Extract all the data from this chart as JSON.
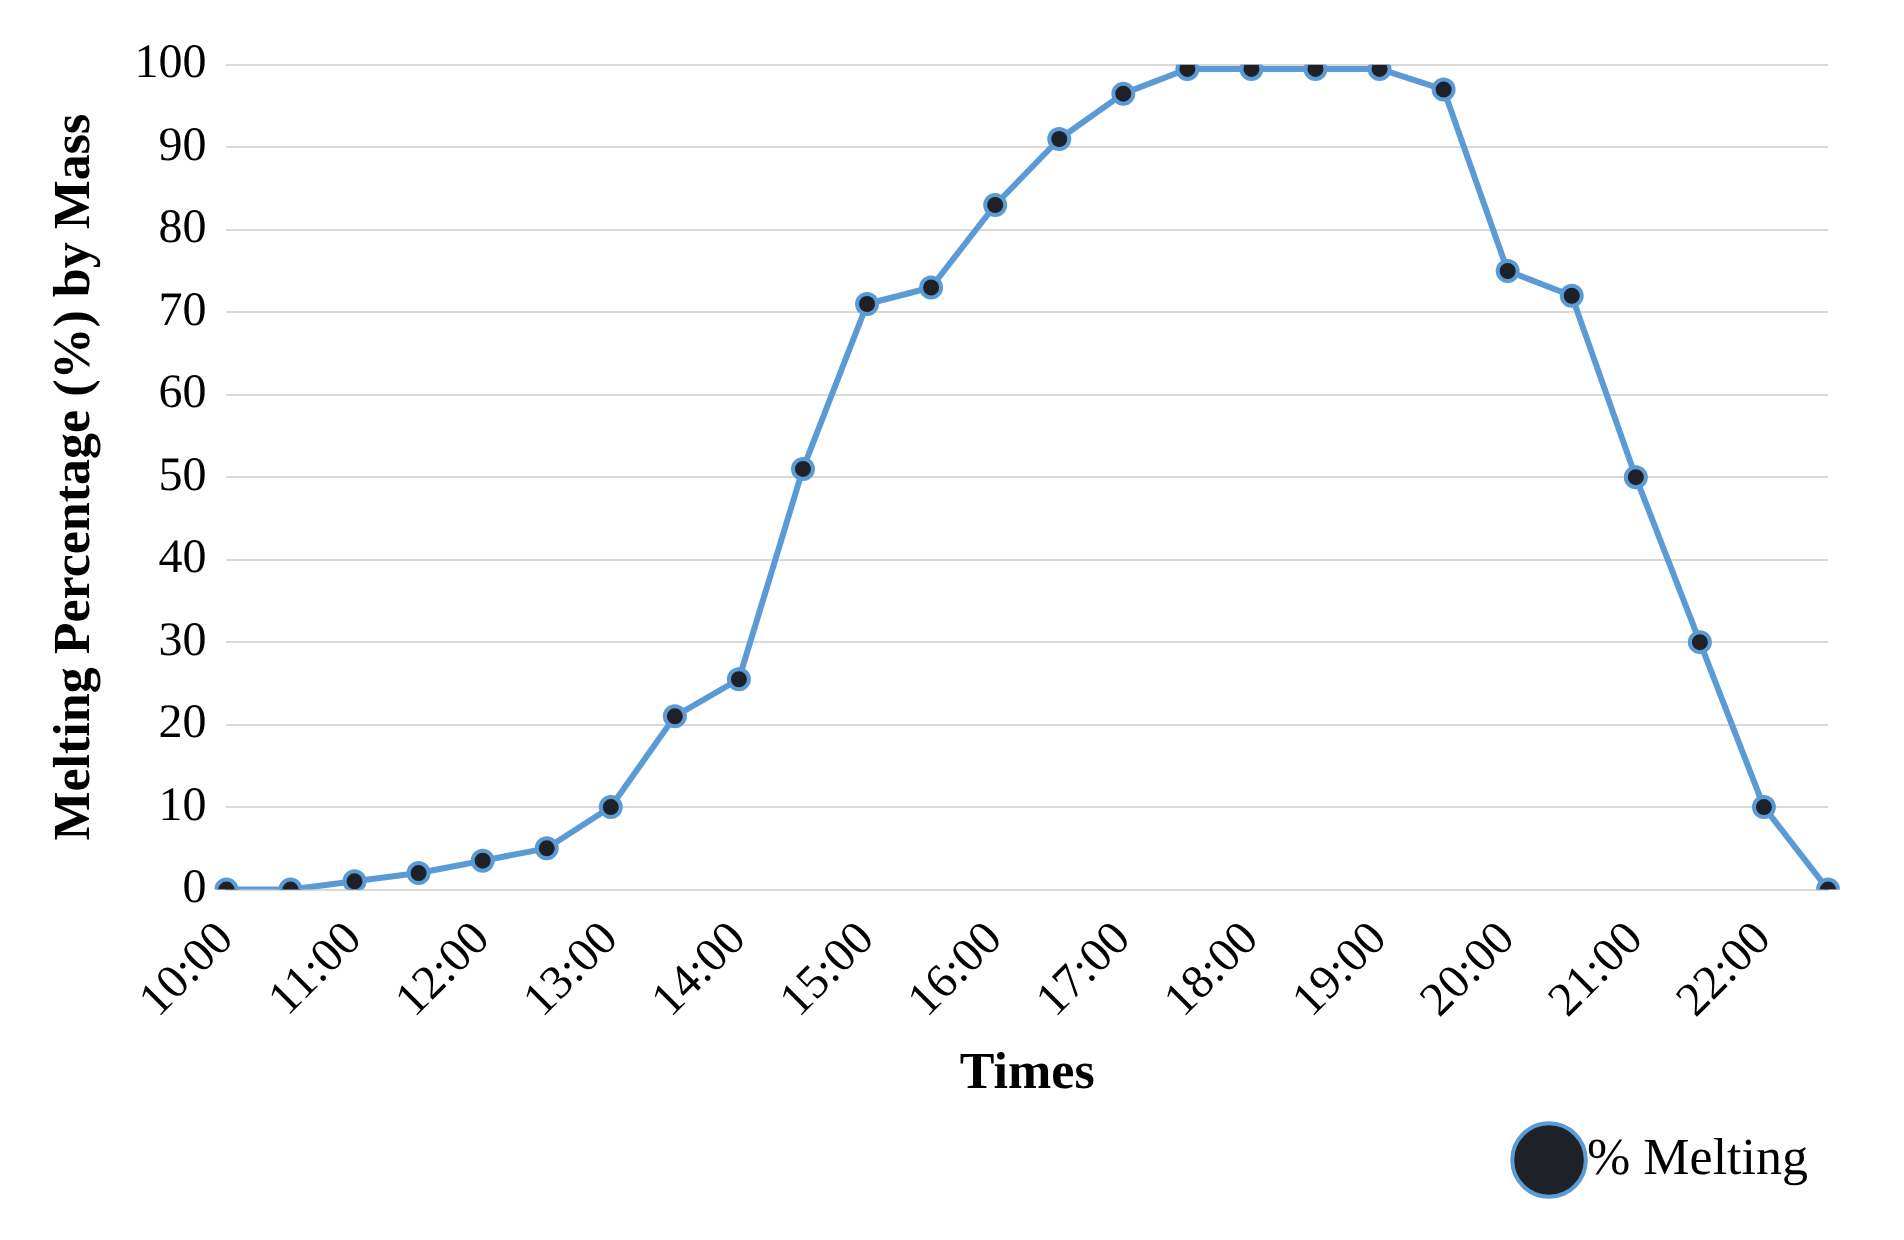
{
  "chart_data": {
    "type": "line",
    "xlabel": "Times",
    "ylabel": "Melting Percentage (%) by Mass",
    "categories": [
      "10:00",
      null,
      "11:00",
      null,
      "12:00",
      null,
      "13:00",
      null,
      "14:00",
      null,
      "15:00",
      null,
      "16:00",
      null,
      "17:00",
      null,
      "18:00",
      null,
      "19:00",
      null,
      "20:00",
      null,
      "21:00",
      null,
      "22:00",
      null
    ],
    "series": [
      {
        "name": "% Melting",
        "color": "#5b9bd5",
        "values": [
          0,
          0,
          1,
          2,
          3.5,
          5,
          10,
          21,
          25.5,
          51,
          71,
          73,
          83,
          91,
          96.5,
          99.5,
          99.5,
          99.5,
          99.5,
          97,
          75,
          72,
          50,
          30,
          10,
          0
        ]
      }
    ],
    "ylim": [
      0,
      100
    ],
    "yticks": [
      0,
      10,
      20,
      30,
      40,
      50,
      60,
      70,
      80,
      90,
      100
    ],
    "grid": "y",
    "legend": "bottom right",
    "marker": "circle",
    "line_style": "solid"
  }
}
